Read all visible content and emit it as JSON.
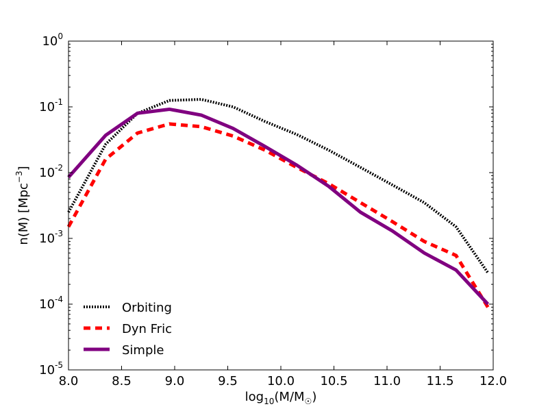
{
  "chart_data": {
    "type": "line",
    "title": "",
    "xlabel": {
      "base": "log",
      "sub": "10",
      "mid": "(M/M",
      "sun": "☉",
      "close": ")"
    },
    "ylabel": {
      "base": "n(M) [Mpc",
      "sup": "−3",
      "close": "]"
    },
    "xlim": [
      8.0,
      12.0
    ],
    "ylim_log10": [
      -5,
      0
    ],
    "yscale": "log",
    "x_ticks": [
      "8.0",
      "8.5",
      "9.0",
      "9.5",
      "10.0",
      "10.5",
      "11.0",
      "11.5",
      "12.0"
    ],
    "x_tick_values": [
      8.0,
      8.5,
      9.0,
      9.5,
      10.0,
      10.5,
      11.0,
      11.5,
      12.0
    ],
    "y_ticks": [
      {
        "base": "10",
        "exp": "0",
        "value": 0
      },
      {
        "base": "10",
        "exp": "-1",
        "value": -1
      },
      {
        "base": "10",
        "exp": "-2",
        "value": -2
      },
      {
        "base": "10",
        "exp": "-3",
        "value": -3
      },
      {
        "base": "10",
        "exp": "-4",
        "value": -4
      },
      {
        "base": "10",
        "exp": "-5",
        "value": -5
      }
    ],
    "legend_position": "bottom-left",
    "series": [
      {
        "name": "Orbiting",
        "color": "#000000",
        "style": "dotted",
        "x": [
          8.0,
          8.35,
          8.65,
          8.95,
          9.25,
          9.55,
          9.85,
          10.15,
          10.45,
          10.75,
          11.05,
          11.35,
          11.65,
          11.95
        ],
        "y": [
          0.0025,
          0.027,
          0.08,
          0.125,
          0.13,
          0.1,
          0.06,
          0.038,
          0.022,
          0.012,
          0.0065,
          0.0035,
          0.0015,
          0.0003
        ]
      },
      {
        "name": "Dyn Fric",
        "color": "#ff0000",
        "style": "dashed",
        "x": [
          8.0,
          8.35,
          8.65,
          8.95,
          9.25,
          9.55,
          9.85,
          10.15,
          10.45,
          10.75,
          11.05,
          11.35,
          11.65,
          11.95
        ],
        "y": [
          0.0015,
          0.016,
          0.04,
          0.055,
          0.05,
          0.036,
          0.022,
          0.012,
          0.0068,
          0.0035,
          0.0018,
          0.0009,
          0.00055,
          9e-05
        ]
      },
      {
        "name": "Simple",
        "color": "#800080",
        "style": "solid",
        "x": [
          8.0,
          8.35,
          8.65,
          8.95,
          9.25,
          9.55,
          9.85,
          10.15,
          10.45,
          10.75,
          11.05,
          11.35,
          11.65,
          11.95
        ],
        "y": [
          0.0085,
          0.037,
          0.08,
          0.092,
          0.075,
          0.047,
          0.025,
          0.013,
          0.0062,
          0.0025,
          0.0013,
          0.0006,
          0.00033,
          0.0001
        ]
      }
    ]
  }
}
